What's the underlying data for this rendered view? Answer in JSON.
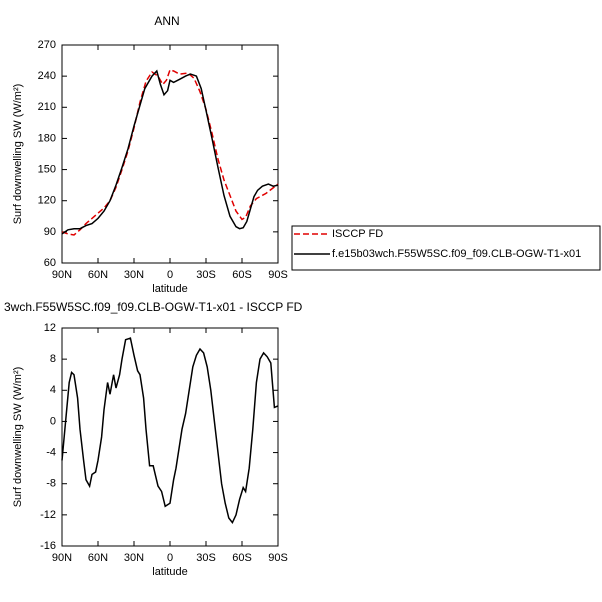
{
  "chart_data": [
    {
      "type": "line",
      "title": "ANN",
      "xlabel": "latitude",
      "ylabel": "Surf downwelling SW (W/m²)",
      "xlim": [
        90,
        -90
      ],
      "ylim": [
        60,
        270
      ],
      "xticks": [
        {
          "value": 90,
          "label": "90N"
        },
        {
          "value": 60,
          "label": "60N"
        },
        {
          "value": 30,
          "label": "30N"
        },
        0,
        {
          "value": -30,
          "label": "30S"
        },
        {
          "value": -60,
          "label": "60S"
        },
        {
          "value": -90,
          "label": "90S"
        }
      ],
      "yticks": [
        60,
        90,
        120,
        150,
        180,
        210,
        240,
        270
      ],
      "legend": "right",
      "series": [
        {
          "name": "ISCCP FD",
          "color": "#e00000",
          "dash": true,
          "x": [
            90,
            85,
            80,
            75,
            70,
            65,
            60,
            55,
            50,
            45,
            40,
            35,
            30,
            25,
            20,
            15,
            10,
            6,
            3,
            0,
            -3,
            -8,
            -15,
            -20,
            -25,
            -30,
            -35,
            -40,
            -45,
            -50,
            -55,
            -60,
            -63,
            -67,
            -72,
            -80,
            -90
          ],
          "values": [
            90,
            88,
            87,
            92,
            98,
            103,
            108,
            113,
            120,
            133,
            150,
            168,
            190,
            215,
            235,
            244,
            240,
            232,
            236,
            246,
            245,
            242,
            243,
            238,
            225,
            208,
            185,
            160,
            140,
            125,
            110,
            102,
            104,
            115,
            122,
            127,
            136
          ]
        },
        {
          "name": "f.e15b03wch.F55W5SC.f09_f09.CLB-OGW-T1-x01",
          "color": "#000000",
          "dash": false,
          "x": [
            90,
            85,
            80,
            75,
            70,
            65,
            60,
            55,
            50,
            45,
            40,
            35,
            30,
            25,
            21,
            15,
            11,
            8,
            5,
            2,
            0,
            -3,
            -8,
            -13,
            -17,
            -22,
            -26,
            -30,
            -35,
            -40,
            -45,
            -50,
            -55,
            -58,
            -61,
            -64,
            -67,
            -70,
            -73,
            -77,
            -82,
            -86,
            -90
          ],
          "values": [
            88,
            92,
            93,
            93,
            96,
            98,
            103,
            110,
            120,
            135,
            152,
            170,
            192,
            212,
            228,
            240,
            245,
            232,
            222,
            226,
            236,
            234,
            237,
            240,
            242,
            240,
            228,
            207,
            180,
            152,
            125,
            105,
            95,
            93,
            94,
            100,
            112,
            124,
            130,
            134,
            136,
            134,
            135
          ]
        }
      ]
    },
    {
      "type": "line",
      "title": "3wch.F55W5SC.f09_f09.CLB-OGW-T1-x01 - ISCCP FD",
      "xlabel": "latitude",
      "ylabel": "Surf downwelling SW (W/m²)",
      "xlim": [
        90,
        -90
      ],
      "ylim": [
        -16,
        12
      ],
      "xticks": [
        {
          "value": 90,
          "label": "90N"
        },
        {
          "value": 60,
          "label": "60N"
        },
        {
          "value": 30,
          "label": "30N"
        },
        0,
        {
          "value": -30,
          "label": "30S"
        },
        {
          "value": -60,
          "label": "60S"
        },
        {
          "value": -90,
          "label": "90S"
        }
      ],
      "yticks": [
        -16,
        -12,
        -8,
        -4,
        0,
        4,
        8,
        12
      ],
      "series": [
        {
          "color": "#000000",
          "dash": false,
          "x": [
            90,
            87,
            84,
            82,
            80,
            77,
            75,
            72,
            70,
            67,
            65,
            62,
            60,
            57,
            55,
            52,
            50,
            47,
            45,
            42,
            40,
            37,
            33,
            30,
            27,
            25,
            22,
            20,
            17,
            14,
            12,
            10,
            7,
            4,
            0,
            -3,
            -5,
            -8,
            -10,
            -13,
            -16,
            -19,
            -22,
            -25,
            -28,
            -31,
            -34,
            -37,
            -40,
            -43,
            -46,
            -49,
            -52,
            -55,
            -58,
            -61,
            -63,
            -66,
            -69,
            -72,
            -75,
            -78,
            -81,
            -84,
            -87,
            -90
          ],
          "values": [
            -5,
            0,
            5,
            6.3,
            6,
            3,
            -1,
            -5,
            -7.5,
            -8.3,
            -6.8,
            -6.5,
            -5,
            -2,
            1.5,
            5,
            3.5,
            6,
            4.3,
            6,
            8,
            10.5,
            10.7,
            8.5,
            6.5,
            6,
            3,
            -1,
            -5.7,
            -5.7,
            -7,
            -8.3,
            -9,
            -10.9,
            -10.5,
            -7.5,
            -6,
            -3,
            -1,
            1,
            4,
            7,
            8.5,
            9.3,
            8.8,
            7,
            4,
            0,
            -4,
            -8,
            -10.5,
            -12.4,
            -13,
            -12,
            -10,
            -8.5,
            -9,
            -6,
            -1,
            5,
            8,
            8.8,
            8.3,
            7.5,
            1.8,
            2
          ]
        }
      ]
    }
  ]
}
